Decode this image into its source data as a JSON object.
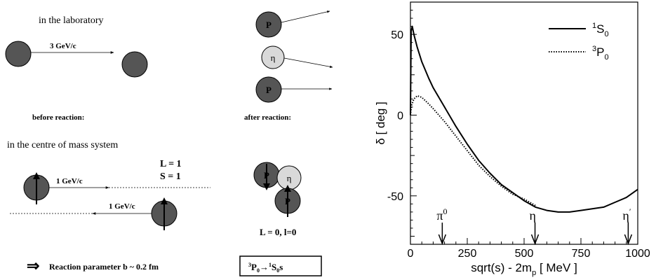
{
  "left_panel": {
    "lab_label": "in the laboratory",
    "lab_momentum": "3 GeV/c",
    "before_label": "before reaction:",
    "after_label": "after reaction:",
    "particle_p": "P",
    "particle_eta": "η",
    "cm_label": "in the centre of mass system",
    "cm_momentum_right": "1 GeV/c",
    "cm_momentum_left": "1 GeV/c",
    "L_label": "L = 1",
    "S_label": "S = 1",
    "final_L_label": "L = 0, l=0",
    "reaction_param_arrow": "⇒",
    "reaction_param": "Reaction parameter b ~ 0.2 fm",
    "transition": {
      "a": "3",
      "b": "P",
      "c": "0",
      "arrow": "→",
      "d": "1",
      "e": "S",
      "f": "0",
      "g": "s"
    }
  },
  "chart_data": {
    "type": "line",
    "title": "",
    "xlabel": "sqrt(s) - 2m",
    "xlabel_sub": "p",
    "xlabel_tail": " [ MeV ]",
    "ylabel": "δ [ deg ]",
    "xlim": [
      0,
      1000
    ],
    "ylim": [
      -80,
      70
    ],
    "xticks": [
      0,
      250,
      500,
      750,
      1000
    ],
    "yticks": [
      50,
      0,
      -50
    ],
    "legend_position": "top-right",
    "series": [
      {
        "name": "1S0",
        "name_sup": "1",
        "name_main": "S",
        "name_sub": "0",
        "style": "solid",
        "x": [
          0,
          3,
          8,
          15,
          30,
          50,
          80,
          100,
          150,
          200,
          250,
          300,
          350,
          400,
          450,
          500,
          550,
          600,
          650,
          700,
          750,
          800,
          850,
          900,
          950,
          1000
        ],
        "y": [
          0,
          52,
          55,
          50,
          42,
          33,
          23,
          17,
          5,
          -7,
          -18,
          -28,
          -36,
          -43,
          -48,
          -53,
          -57,
          -59,
          -60,
          -60,
          -59,
          -58,
          -57,
          -54,
          -51,
          -46
        ]
      },
      {
        "name": "3P0",
        "name_sup": "3",
        "name_main": "P",
        "name_sub": "0",
        "style": "dotted",
        "x": [
          0,
          5,
          15,
          30,
          50,
          80,
          100,
          150,
          200,
          250,
          300,
          350,
          400,
          450,
          500,
          550
        ],
        "y": [
          0,
          6,
          10,
          12,
          11,
          7,
          4,
          -4,
          -13,
          -22,
          -31,
          -38,
          -44,
          -49,
          -52,
          -56
        ]
      }
    ],
    "annotations": [
      {
        "label": "π",
        "label_sup": "0",
        "x": 140
      },
      {
        "label": "η",
        "x": 548
      },
      {
        "label": "η",
        "label_sup": "′",
        "x": 958
      }
    ]
  }
}
